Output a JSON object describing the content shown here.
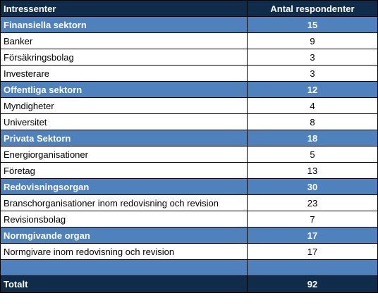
{
  "table": {
    "header": {
      "col1": "Intressenter",
      "col2": "Antal respondenter"
    },
    "rows": [
      {
        "type": "group",
        "label": "Finansiella sektorn",
        "value": "15"
      },
      {
        "type": "item",
        "label": "Banker",
        "value": "9"
      },
      {
        "type": "item",
        "label": "Försäkringsbolag",
        "value": "3"
      },
      {
        "type": "item",
        "label": "Investerare",
        "value": "3"
      },
      {
        "type": "group",
        "label": "Offentliga sektorn",
        "value": "12"
      },
      {
        "type": "item",
        "label": "Myndigheter",
        "value": "4"
      },
      {
        "type": "item",
        "label": "Universitet",
        "value": "8"
      },
      {
        "type": "group",
        "label": "Privata Sektorn",
        "value": "18"
      },
      {
        "type": "item",
        "label": "Energiorganisationer",
        "value": "5"
      },
      {
        "type": "item",
        "label": "Företag",
        "value": "13"
      },
      {
        "type": "group",
        "label": "Redovisningsorgan",
        "value": "30"
      },
      {
        "type": "item",
        "label": "Branschorganisationer inom redovisning och revision",
        "value": "23"
      },
      {
        "type": "item",
        "label": "Revisionsbolag",
        "value": "7"
      },
      {
        "type": "group",
        "label": "Normgivande organ",
        "value": "17"
      },
      {
        "type": "item",
        "label": "Normgivare inom redovisning och revision",
        "value": "17"
      },
      {
        "type": "spacer",
        "label": "",
        "value": ""
      }
    ],
    "total": {
      "label": "Totalt",
      "value": "92"
    }
  },
  "colors": {
    "header_bg": "#0f2d4a",
    "group_bg": "#4f81bd",
    "item_bg": "#ffffff",
    "border": "#000000"
  }
}
